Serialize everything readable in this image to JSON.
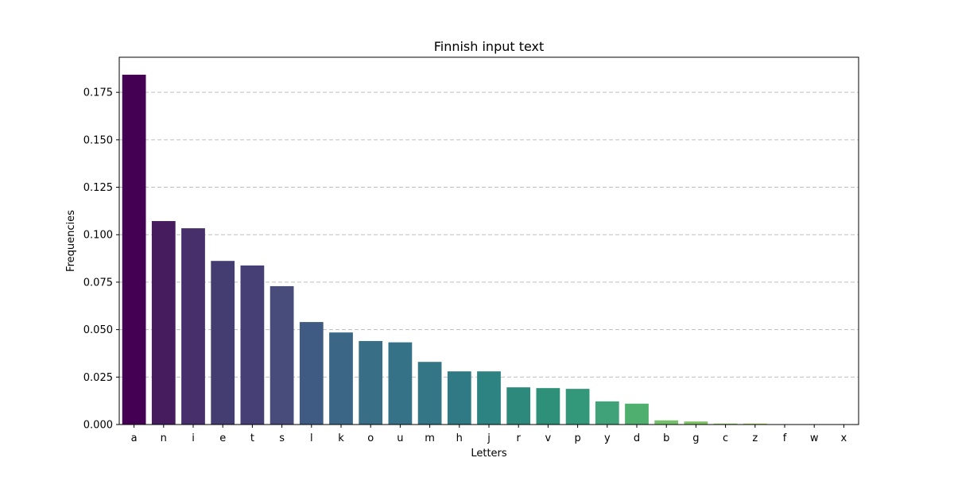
{
  "chart_data": {
    "type": "bar",
    "title": "Finnish input text",
    "xlabel": "Letters",
    "ylabel": "Frequencies",
    "categories": [
      "a",
      "n",
      "i",
      "e",
      "t",
      "s",
      "l",
      "k",
      "o",
      "u",
      "m",
      "h",
      "j",
      "r",
      "v",
      "p",
      "y",
      "d",
      "b",
      "g",
      "c",
      "z",
      "f",
      "w",
      "x"
    ],
    "values": [
      0.1843,
      0.1072,
      0.1034,
      0.0862,
      0.0838,
      0.0729,
      0.054,
      0.0485,
      0.044,
      0.0433,
      0.033,
      0.028,
      0.028,
      0.0196,
      0.0192,
      0.0188,
      0.0122,
      0.011,
      0.0022,
      0.0016,
      0.0005,
      0.0005,
      0.0002,
      0.0002,
      0.0002
    ],
    "ylim": [
      0,
      0.1935
    ],
    "yticks": [
      0.0,
      0.025,
      0.05,
      0.075,
      0.1,
      0.125,
      0.15,
      0.175
    ],
    "ytick_labels": [
      "0.000",
      "0.025",
      "0.050",
      "0.075",
      "0.100",
      "0.125",
      "0.150",
      "0.175"
    ],
    "grid": "y-dashed",
    "colors": [
      "#440154",
      "#461c5f",
      "#462f6a",
      "#433d71",
      "#453f75",
      "#484c7b",
      "#3f5b83",
      "#3c6686",
      "#386f87",
      "#357287",
      "#347586",
      "#307a85",
      "#2d8282",
      "#2d897c",
      "#2f907a",
      "#33977a",
      "#3fa278",
      "#4faf6f",
      "#75c06a",
      "#7fc266",
      "#95cd5e",
      "#a9d35a",
      "#c0dd4f",
      "#d5e24a",
      "#eae24a"
    ]
  }
}
